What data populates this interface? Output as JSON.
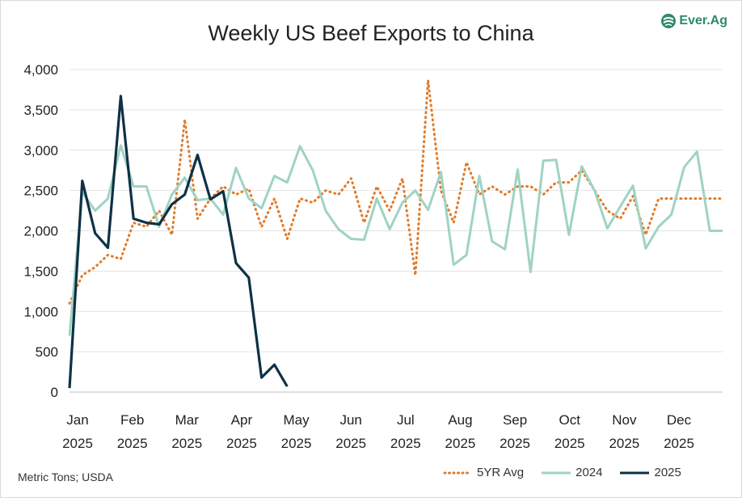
{
  "title": "Weekly US Beef Exports to China",
  "logo": {
    "text": "Ever.Ag",
    "icon": "everag-logo-icon",
    "color": "#2d8a6a"
  },
  "source": "Metric Tons; USDA",
  "legend": [
    {
      "name": "5YR Avg",
      "color": "#e07b2a",
      "style": "dotted"
    },
    {
      "name": "2024",
      "color": "#9fd3c3",
      "style": "solid"
    },
    {
      "name": "2025",
      "color": "#0e3146",
      "style": "solid"
    }
  ],
  "chart_data": {
    "type": "line",
    "title": "Weekly US Beef Exports to China",
    "xlabel": "",
    "ylabel": "",
    "ylim": [
      0,
      4000
    ],
    "yticks": [
      "0",
      "500",
      "1,000",
      "1,500",
      "2,000",
      "2,500",
      "3,000",
      "3,500",
      "4,000"
    ],
    "xticks": [
      [
        "Jan",
        "2025"
      ],
      [
        "Feb",
        "2025"
      ],
      [
        "Mar",
        "2025"
      ],
      [
        "Apr",
        "2025"
      ],
      [
        "May",
        "2025"
      ],
      [
        "Jun",
        "2025"
      ],
      [
        "Jul",
        "2025"
      ],
      [
        "Aug",
        "2025"
      ],
      [
        "Sep",
        "2025"
      ],
      [
        "Oct",
        "2025"
      ],
      [
        "Nov",
        "2025"
      ],
      [
        "Dec",
        "2025"
      ]
    ],
    "grid": "horizontal",
    "legend_position": "bottom",
    "series": [
      {
        "name": "5YR Avg",
        "color": "#e07b2a",
        "dash": "dotted",
        "weeks": [
          1,
          2,
          3,
          4,
          5,
          6,
          7,
          8,
          9,
          10,
          11,
          12,
          13,
          14,
          15,
          16,
          17,
          18,
          19,
          20,
          21,
          22,
          23,
          24,
          25,
          26,
          27,
          28,
          29,
          30,
          31,
          32,
          33,
          34,
          35,
          36,
          37,
          38,
          39,
          40,
          41,
          42,
          43,
          44,
          45,
          46,
          47,
          48,
          49,
          50,
          51,
          52
        ],
        "values": [
          1100,
          1450,
          1550,
          1700,
          1650,
          2100,
          2050,
          2250,
          1950,
          3380,
          2150,
          2400,
          2550,
          2450,
          2520,
          2050,
          2400,
          1900,
          2400,
          2350,
          2500,
          2450,
          2650,
          2100,
          2550,
          2250,
          2650,
          1450,
          3870,
          2500,
          2100,
          2850,
          2450,
          2550,
          2450,
          2550,
          2550,
          2450,
          2600,
          2600,
          2750,
          2500,
          2250,
          2150,
          2430,
          1950,
          2400,
          2400,
          2400,
          2400,
          2400,
          2400
        ]
      },
      {
        "name": "2024",
        "color": "#9fd3c3",
        "dash": "solid",
        "weeks": [
          1,
          2,
          3,
          4,
          5,
          6,
          7,
          8,
          9,
          10,
          11,
          12,
          13,
          14,
          15,
          16,
          17,
          18,
          19,
          20,
          21,
          22,
          23,
          24,
          25,
          26,
          27,
          28,
          29,
          30,
          31,
          32,
          33,
          34,
          35,
          36,
          37,
          38,
          39,
          40,
          41,
          42,
          43,
          44,
          45,
          46,
          47,
          48,
          49,
          50,
          51,
          52
        ],
        "values": [
          700,
          2480,
          2250,
          2400,
          3060,
          2550,
          2550,
          2050,
          2450,
          2660,
          2380,
          2400,
          2200,
          2780,
          2400,
          2280,
          2680,
          2600,
          3050,
          2750,
          2250,
          2020,
          1900,
          1890,
          2400,
          2020,
          2350,
          2500,
          2260,
          2730,
          1580,
          1700,
          2680,
          1870,
          1770,
          2760,
          1490,
          2870,
          2880,
          1950,
          2800,
          2500,
          2030,
          2300,
          2560,
          1780,
          2050,
          2200,
          2790,
          2980,
          2000,
          2000
        ]
      },
      {
        "name": "2025",
        "color": "#0e3146",
        "dash": "solid",
        "weeks": [
          1,
          2,
          3,
          4,
          5,
          6,
          7,
          8,
          9,
          10,
          11,
          12,
          13,
          14,
          15,
          16,
          17,
          18
        ],
        "values": [
          50,
          2620,
          1970,
          1790,
          3670,
          2150,
          2100,
          2080,
          2330,
          2450,
          2940,
          2390,
          2490,
          1600,
          1420,
          180,
          340,
          70
        ]
      }
    ]
  }
}
